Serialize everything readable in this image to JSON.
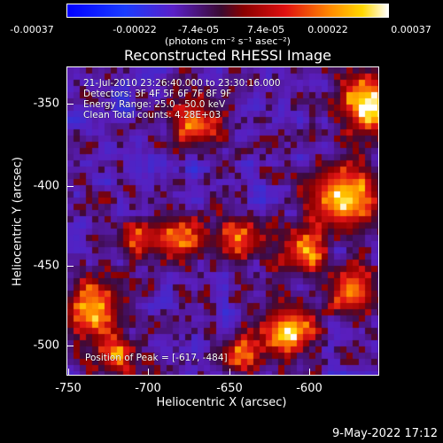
{
  "colorbar": {
    "ticks": [
      "-0.00037",
      "-0.00022",
      "-7.4e-05",
      "7.4e-05",
      "0.00022",
      "0.00037"
    ],
    "units": "(photons cm⁻² s⁻¹ asec⁻²)"
  },
  "title": "Reconstructed RHESSI Image",
  "annotations": {
    "line1": "21-Jul-2010 23:26:40.000 to 23:30:16.000",
    "line2": "Detectors: 3F 4F 5F 6F 7F 8F 9F",
    "line3": "Energy Range: 25.0 - 50.0 keV",
    "line4": "Clean    Total counts: 4.28E+03",
    "peak": "Position of Peak = [-617, -484]"
  },
  "axes": {
    "xlabel": "Heliocentric X (arcsec)",
    "ylabel": "Heliocentric Y (arcsec)",
    "xticks": [
      "-750",
      "-700",
      "-650",
      "-600"
    ],
    "yticks": [
      "-350",
      "-400",
      "-450",
      "-500"
    ]
  },
  "datestamp": "9-May-2022 17:12"
}
